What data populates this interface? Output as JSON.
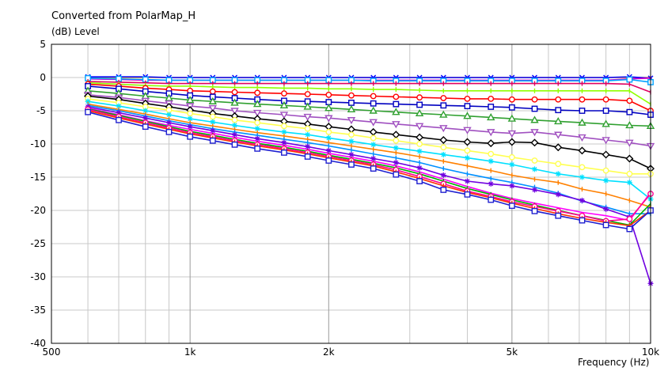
{
  "chart_data": {
    "type": "line",
    "title": "Converted from PolarMap_H",
    "ylabel": "(dB)  Level",
    "xlabel": "Frequency  (Hz)",
    "xscale": "log",
    "xlim": [
      500,
      10000
    ],
    "ylim": [
      -40,
      5
    ],
    "grid": true,
    "legend": "none",
    "x_ticks": [
      {
        "value": 500,
        "label": "500"
      },
      {
        "value": 1000,
        "label": "1k"
      },
      {
        "value": 2000,
        "label": "2k"
      },
      {
        "value": 5000,
        "label": "5k"
      },
      {
        "value": 10000,
        "label": "10k"
      }
    ],
    "y_ticks": [
      5,
      0,
      -5,
      -10,
      -15,
      -20,
      -25,
      -30,
      -35,
      -40
    ],
    "x": [
      600,
      700,
      800,
      900,
      1000,
      1120,
      1250,
      1400,
      1600,
      1800,
      2000,
      2240,
      2500,
      2800,
      3150,
      3550,
      4000,
      4500,
      5000,
      5600,
      6300,
      7100,
      8000,
      9000,
      10000
    ],
    "series": [
      {
        "color": "#ffa500",
        "marker": "none",
        "values": [
          0,
          0,
          0,
          0,
          0,
          0,
          0,
          0,
          0,
          0,
          0,
          0,
          0,
          0,
          0,
          0,
          0,
          0,
          0,
          0,
          0,
          0,
          0,
          0,
          0
        ]
      },
      {
        "color": "#0000ff",
        "marker": "x",
        "values": [
          0.1,
          0.1,
          0.1,
          0,
          0,
          0,
          0,
          0,
          0,
          0,
          0,
          0,
          0,
          0,
          0,
          0,
          0,
          0,
          0,
          0,
          0,
          0,
          0,
          0.1,
          -0.1
        ]
      },
      {
        "color": "#d000d0",
        "marker": "dash",
        "values": [
          -0.2,
          -0.3,
          -0.4,
          -0.4,
          -0.4,
          -0.4,
          -0.4,
          -0.4,
          -0.4,
          -0.4,
          -0.4,
          -0.4,
          -0.4,
          -0.4,
          -0.4,
          -0.4,
          -0.4,
          -0.4,
          -0.4,
          -0.4,
          -0.4,
          -0.4,
          -0.4,
          -0.2,
          -0.1
        ]
      },
      {
        "color": "#00a0ff",
        "marker": "square",
        "values": [
          -0.1,
          -0.2,
          -0.3,
          -0.4,
          -0.4,
          -0.4,
          -0.4,
          -0.4,
          -0.4,
          -0.4,
          -0.4,
          -0.4,
          -0.5,
          -0.5,
          -0.5,
          -0.5,
          -0.5,
          -0.5,
          -0.5,
          -0.5,
          -0.5,
          -0.5,
          -0.5,
          -0.3,
          -0.7
        ]
      },
      {
        "color": "#e00060",
        "marker": "dash",
        "values": [
          -0.6,
          -0.7,
          -0.8,
          -0.9,
          -0.9,
          -0.9,
          -0.9,
          -0.9,
          -0.9,
          -0.9,
          -0.9,
          -0.9,
          -0.9,
          -0.9,
          -0.9,
          -0.9,
          -0.9,
          -0.9,
          -0.9,
          -0.9,
          -0.9,
          -0.9,
          -0.9,
          -1.0,
          -2.2
        ]
      },
      {
        "color": "#90ff00",
        "marker": "dash",
        "values": [
          -0.8,
          -1.0,
          -1.2,
          -1.3,
          -1.3,
          -1.4,
          -1.5,
          -1.5,
          -1.6,
          -1.6,
          -1.7,
          -1.7,
          -1.8,
          -1.8,
          -1.9,
          -2.0,
          -2.0,
          -2.0,
          -2.0,
          -2.0,
          -2.0,
          -2.0,
          -2.0,
          -2.0,
          -4.0
        ]
      },
      {
        "color": "#ff0000",
        "marker": "circle",
        "values": [
          -1.0,
          -1.3,
          -1.6,
          -1.8,
          -2.0,
          -2.1,
          -2.2,
          -2.3,
          -2.4,
          -2.5,
          -2.6,
          -2.7,
          -2.8,
          -2.9,
          -3.0,
          -3.1,
          -3.2,
          -3.2,
          -3.3,
          -3.3,
          -3.3,
          -3.3,
          -3.3,
          -3.5,
          -5.0
        ]
      },
      {
        "color": "#0000c0",
        "marker": "square",
        "values": [
          -1.3,
          -1.7,
          -2.1,
          -2.4,
          -2.7,
          -2.9,
          -3.1,
          -3.3,
          -3.5,
          -3.6,
          -3.7,
          -3.8,
          -3.9,
          -4.0,
          -4.1,
          -4.2,
          -4.3,
          -4.4,
          -4.5,
          -4.7,
          -4.9,
          -5.0,
          -5.0,
          -5.2,
          -5.6
        ]
      },
      {
        "color": "#30a030",
        "marker": "triangle",
        "values": [
          -2.0,
          -2.4,
          -2.8,
          -3.1,
          -3.4,
          -3.6,
          -3.8,
          -4.0,
          -4.2,
          -4.4,
          -4.6,
          -4.8,
          -5.0,
          -5.2,
          -5.4,
          -5.6,
          -5.8,
          -6.0,
          -6.2,
          -6.4,
          -6.6,
          -6.8,
          -7.0,
          -7.2,
          -7.3
        ]
      },
      {
        "color": "#a050c0",
        "marker": "triangle-down",
        "values": [
          -2.6,
          -3.0,
          -3.5,
          -3.9,
          -4.3,
          -4.6,
          -5.0,
          -5.3,
          -5.6,
          -5.9,
          -6.1,
          -6.4,
          -6.7,
          -7.0,
          -7.3,
          -7.6,
          -7.9,
          -8.2,
          -8.4,
          -8.2,
          -8.6,
          -9.0,
          -9.4,
          -9.8,
          -10.3
        ]
      },
      {
        "color": "#000000",
        "marker": "diamond",
        "values": [
          -2.8,
          -3.3,
          -3.9,
          -4.4,
          -4.9,
          -5.4,
          -5.8,
          -6.2,
          -6.6,
          -7.0,
          -7.4,
          -7.8,
          -8.2,
          -8.6,
          -9.0,
          -9.4,
          -9.7,
          -9.9,
          -9.7,
          -9.8,
          -10.5,
          -11.0,
          -11.6,
          -12.2,
          -13.7
        ]
      },
      {
        "color": "#ffff50",
        "marker": "circle",
        "values": [
          -3.2,
          -3.8,
          -4.4,
          -4.9,
          -5.4,
          -5.9,
          -6.4,
          -6.8,
          -7.3,
          -7.7,
          -8.2,
          -8.6,
          -9.1,
          -9.5,
          -10.0,
          -10.5,
          -11.0,
          -11.5,
          -12.0,
          -12.5,
          -13.0,
          -13.5,
          -14.0,
          -14.5,
          -14.5
        ]
      },
      {
        "color": "#00e0ff",
        "marker": "star",
        "values": [
          -3.6,
          -4.3,
          -5.0,
          -5.6,
          -6.2,
          -6.7,
          -7.2,
          -7.7,
          -8.2,
          -8.6,
          -9.1,
          -9.6,
          -10.1,
          -10.6,
          -11.1,
          -11.6,
          -12.1,
          -12.6,
          -13.1,
          -13.8,
          -14.5,
          -15.0,
          -15.5,
          -15.8,
          -18.3
        ]
      },
      {
        "color": "#ff8000",
        "marker": "dash",
        "values": [
          -4.0,
          -4.8,
          -5.5,
          -6.2,
          -6.8,
          -7.3,
          -7.8,
          -8.3,
          -8.8,
          -9.3,
          -9.8,
          -10.3,
          -10.8,
          -11.3,
          -11.9,
          -12.6,
          -13.3,
          -14.0,
          -14.7,
          -15.3,
          -15.8,
          -16.8,
          -17.5,
          -18.5,
          -19.5
        ]
      },
      {
        "color": "#0090ff",
        "marker": "dash",
        "values": [
          -4.2,
          -5.0,
          -5.8,
          -6.5,
          -7.1,
          -7.7,
          -8.2,
          -8.7,
          -9.3,
          -9.8,
          -10.3,
          -10.9,
          -11.5,
          -12.1,
          -12.8,
          -13.7,
          -14.5,
          -15.2,
          -15.8,
          -16.5,
          -17.4,
          -18.6,
          -19.5,
          -20.5,
          -20.5
        ]
      },
      {
        "color": "#7000e0",
        "marker": "star",
        "values": [
          -4.4,
          -5.3,
          -6.1,
          -6.8,
          -7.4,
          -8.0,
          -8.6,
          -9.2,
          -9.8,
          -10.4,
          -11.0,
          -11.6,
          -12.2,
          -12.8,
          -13.6,
          -14.7,
          -15.6,
          -16.0,
          -16.3,
          -16.9,
          -17.6,
          -18.5,
          -19.8,
          -21.0,
          -31.0
        ]
      },
      {
        "color": "#ff00ff",
        "marker": "none",
        "values": [
          -4.6,
          -5.6,
          -6.5,
          -7.2,
          -7.8,
          -8.4,
          -9.0,
          -9.6,
          -10.2,
          -10.8,
          -11.4,
          -12.0,
          -12.6,
          -13.3,
          -14.2,
          -15.3,
          -16.4,
          -17.4,
          -18.2,
          -18.9,
          -19.6,
          -20.3,
          -20.8,
          -21.5,
          -17.3
        ]
      },
      {
        "color": "#00b000",
        "marker": "dash",
        "values": [
          -4.7,
          -5.7,
          -6.6,
          -7.4,
          -8.1,
          -8.7,
          -9.3,
          -9.9,
          -10.5,
          -11.1,
          -11.7,
          -12.3,
          -12.9,
          -13.6,
          -14.5,
          -15.6,
          -16.7,
          -17.6,
          -18.4,
          -19.2,
          -20.0,
          -20.8,
          -21.5,
          -22.2,
          -19.0
        ]
      },
      {
        "color": "#ff0090",
        "marker": "circle",
        "values": [
          -4.8,
          -5.9,
          -6.8,
          -7.6,
          -8.3,
          -8.9,
          -9.5,
          -10.1,
          -10.7,
          -11.3,
          -11.9,
          -12.5,
          -13.1,
          -13.9,
          -14.9,
          -16.0,
          -17.1,
          -17.9,
          -18.7,
          -19.4,
          -20.1,
          -20.8,
          -21.6,
          -21.3,
          -17.5
        ]
      },
      {
        "color": "#ff3000",
        "marker": "dash",
        "values": [
          -5.0,
          -6.1,
          -7.0,
          -7.8,
          -8.5,
          -9.1,
          -9.7,
          -10.3,
          -10.9,
          -11.5,
          -12.1,
          -12.7,
          -13.3,
          -14.2,
          -15.2,
          -16.3,
          -17.3,
          -18.1,
          -18.9,
          -19.7,
          -20.5,
          -21.2,
          -21.8,
          -22.3,
          -20.0
        ]
      },
      {
        "color": "#2020d0",
        "marker": "square",
        "values": [
          -5.2,
          -6.4,
          -7.4,
          -8.2,
          -8.9,
          -9.5,
          -10.1,
          -10.7,
          -11.3,
          -11.9,
          -12.5,
          -13.1,
          -13.7,
          -14.6,
          -15.6,
          -16.9,
          -17.6,
          -18.4,
          -19.3,
          -20.1,
          -20.8,
          -21.5,
          -22.2,
          -22.8,
          -20.0
        ]
      }
    ]
  }
}
